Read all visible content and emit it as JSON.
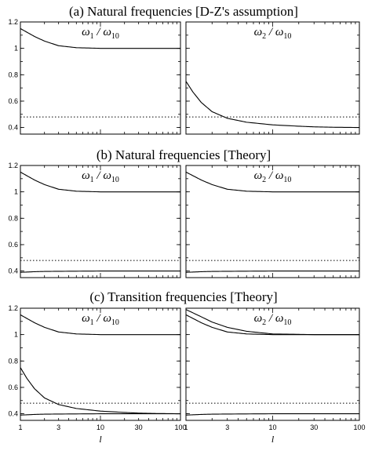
{
  "sections": [
    {
      "title": "(a) Natural frequencies  [D-Z's assumption]"
    },
    {
      "title": "(b) Natural frequencies  [Theory]"
    },
    {
      "title": "(c) Transition frequencies  [Theory]"
    }
  ],
  "chart_data": [
    {
      "type": "line",
      "label": {
        "symbol": "ω",
        "num_sub": "1",
        "sep": " / ",
        "den_sub": "10"
      },
      "xscale": "log",
      "xlim": [
        1,
        100
      ],
      "ylim": [
        0.35,
        1.2
      ],
      "xticks": [
        1,
        3,
        10,
        30,
        100
      ],
      "yticks": [
        0.4,
        0.6,
        0.8,
        1,
        1.2
      ],
      "ytick_labels": [
        "0.4",
        "0.6",
        "0.8",
        "1",
        "1.2"
      ],
      "series": [
        {
          "style": "solid",
          "x": [
            1,
            1.5,
            2,
            3,
            5,
            10,
            30,
            100
          ],
          "y": [
            1.15,
            1.09,
            1.055,
            1.02,
            1.005,
            1.0,
            1.0,
            1.0
          ]
        },
        {
          "style": "dotted",
          "x": [
            1,
            100
          ],
          "y": [
            0.48,
            0.48
          ]
        }
      ]
    },
    {
      "type": "line",
      "label": {
        "symbol": "ω",
        "num_sub": "2",
        "sep": " / ",
        "den_sub": "10"
      },
      "xscale": "log",
      "xlim": [
        1,
        100
      ],
      "ylim": [
        0.35,
        1.2
      ],
      "xticks": [
        1,
        3,
        10,
        30,
        100
      ],
      "yticks": [
        0.4,
        0.6,
        0.8,
        1,
        1.2
      ],
      "series": [
        {
          "style": "solid",
          "x": [
            1,
            1.2,
            1.5,
            2,
            3,
            5,
            10,
            20,
            30,
            50,
            100
          ],
          "y": [
            0.75,
            0.67,
            0.59,
            0.52,
            0.47,
            0.44,
            0.42,
            0.41,
            0.405,
            0.402,
            0.4
          ]
        },
        {
          "style": "dotted",
          "x": [
            1,
            100
          ],
          "y": [
            0.48,
            0.48
          ]
        }
      ]
    },
    {
      "type": "line",
      "label": {
        "symbol": "ω",
        "num_sub": "1",
        "sep": " / ",
        "den_sub": "10"
      },
      "xscale": "log",
      "xlim": [
        1,
        100
      ],
      "ylim": [
        0.35,
        1.2
      ],
      "xticks": [
        1,
        3,
        10,
        30,
        100
      ],
      "yticks": [
        0.4,
        0.6,
        0.8,
        1,
        1.2
      ],
      "ytick_labels": [
        "0.4",
        "0.6",
        "0.8",
        "1",
        "1.2"
      ],
      "series": [
        {
          "style": "solid",
          "x": [
            1,
            1.5,
            2,
            3,
            5,
            10,
            30,
            100
          ],
          "y": [
            1.15,
            1.09,
            1.055,
            1.02,
            1.005,
            1.0,
            1.0,
            1.0
          ]
        },
        {
          "style": "solid",
          "x": [
            1,
            1.5,
            2,
            3,
            10,
            100
          ],
          "y": [
            0.39,
            0.395,
            0.397,
            0.398,
            0.4,
            0.4
          ]
        },
        {
          "style": "dotted",
          "x": [
            1,
            100
          ],
          "y": [
            0.48,
            0.48
          ]
        }
      ]
    },
    {
      "type": "line",
      "label": {
        "symbol": "ω",
        "num_sub": "2",
        "sep": " / ",
        "den_sub": "10"
      },
      "xscale": "log",
      "xlim": [
        1,
        100
      ],
      "ylim": [
        0.35,
        1.2
      ],
      "xticks": [
        1,
        3,
        10,
        30,
        100
      ],
      "yticks": [
        0.4,
        0.6,
        0.8,
        1,
        1.2
      ],
      "series": [
        {
          "style": "solid",
          "x": [
            1,
            1.5,
            2,
            3,
            5,
            10,
            30,
            100
          ],
          "y": [
            1.15,
            1.09,
            1.055,
            1.02,
            1.005,
            1.0,
            1.0,
            1.0
          ]
        },
        {
          "style": "solid",
          "x": [
            1,
            1.5,
            2,
            3,
            10,
            100
          ],
          "y": [
            0.39,
            0.395,
            0.397,
            0.398,
            0.4,
            0.4
          ]
        },
        {
          "style": "dotted",
          "x": [
            1,
            100
          ],
          "y": [
            0.48,
            0.48
          ]
        }
      ]
    },
    {
      "type": "line",
      "label": {
        "symbol": "ω",
        "num_sub": "1",
        "sep": " / ",
        "den_sub": "10"
      },
      "xscale": "log",
      "xlim": [
        1,
        100
      ],
      "ylim": [
        0.35,
        1.2
      ],
      "xticks": [
        1,
        3,
        10,
        30,
        100
      ],
      "yticks": [
        0.4,
        0.6,
        0.8,
        1,
        1.2
      ],
      "ytick_labels": [
        "0.4",
        "0.6",
        "0.8",
        "1",
        "1.2"
      ],
      "xtick_labels": [
        "1",
        "3",
        "10",
        "30",
        "100"
      ],
      "xlabel": "l",
      "series": [
        {
          "style": "solid",
          "x": [
            1,
            1.5,
            2,
            3,
            5,
            10,
            30,
            100
          ],
          "y": [
            1.15,
            1.09,
            1.055,
            1.02,
            1.005,
            1.0,
            1.0,
            1.0
          ]
        },
        {
          "style": "solid",
          "x": [
            1,
            1.2,
            1.5,
            2,
            3,
            5,
            10,
            20,
            30,
            50,
            100
          ],
          "y": [
            0.75,
            0.67,
            0.59,
            0.52,
            0.47,
            0.44,
            0.42,
            0.41,
            0.405,
            0.402,
            0.4
          ]
        },
        {
          "style": "solid",
          "x": [
            1,
            1.5,
            2,
            3,
            10,
            100
          ],
          "y": [
            0.39,
            0.395,
            0.397,
            0.398,
            0.4,
            0.4
          ]
        },
        {
          "style": "dotted",
          "x": [
            1,
            100
          ],
          "y": [
            0.48,
            0.48
          ]
        }
      ]
    },
    {
      "type": "line",
      "label": {
        "symbol": "ω",
        "num_sub": "2",
        "sep": " / ",
        "den_sub": "10"
      },
      "xscale": "log",
      "xlim": [
        1,
        100
      ],
      "ylim": [
        0.35,
        1.2
      ],
      "xticks": [
        1,
        3,
        10,
        30,
        100
      ],
      "yticks": [
        0.4,
        0.6,
        0.8,
        1,
        1.2
      ],
      "xtick_labels": [
        "1",
        "3",
        "10",
        "30",
        "100"
      ],
      "xlabel": "l",
      "series": [
        {
          "style": "solid",
          "x": [
            1,
            1.5,
            2,
            3,
            5,
            10,
            30,
            100
          ],
          "y": [
            1.19,
            1.135,
            1.095,
            1.055,
            1.025,
            1.005,
            1.0,
            1.0
          ]
        },
        {
          "style": "solid",
          "x": [
            1,
            1.5,
            2,
            3,
            5,
            10,
            30,
            100
          ],
          "y": [
            1.15,
            1.09,
            1.055,
            1.02,
            1.005,
            1.0,
            1.0,
            1.0
          ]
        },
        {
          "style": "solid",
          "x": [
            1,
            1.5,
            2,
            3,
            10,
            100
          ],
          "y": [
            0.39,
            0.395,
            0.397,
            0.398,
            0.4,
            0.4
          ]
        },
        {
          "style": "dotted",
          "x": [
            1,
            100
          ],
          "y": [
            0.48,
            0.48
          ]
        }
      ]
    }
  ]
}
